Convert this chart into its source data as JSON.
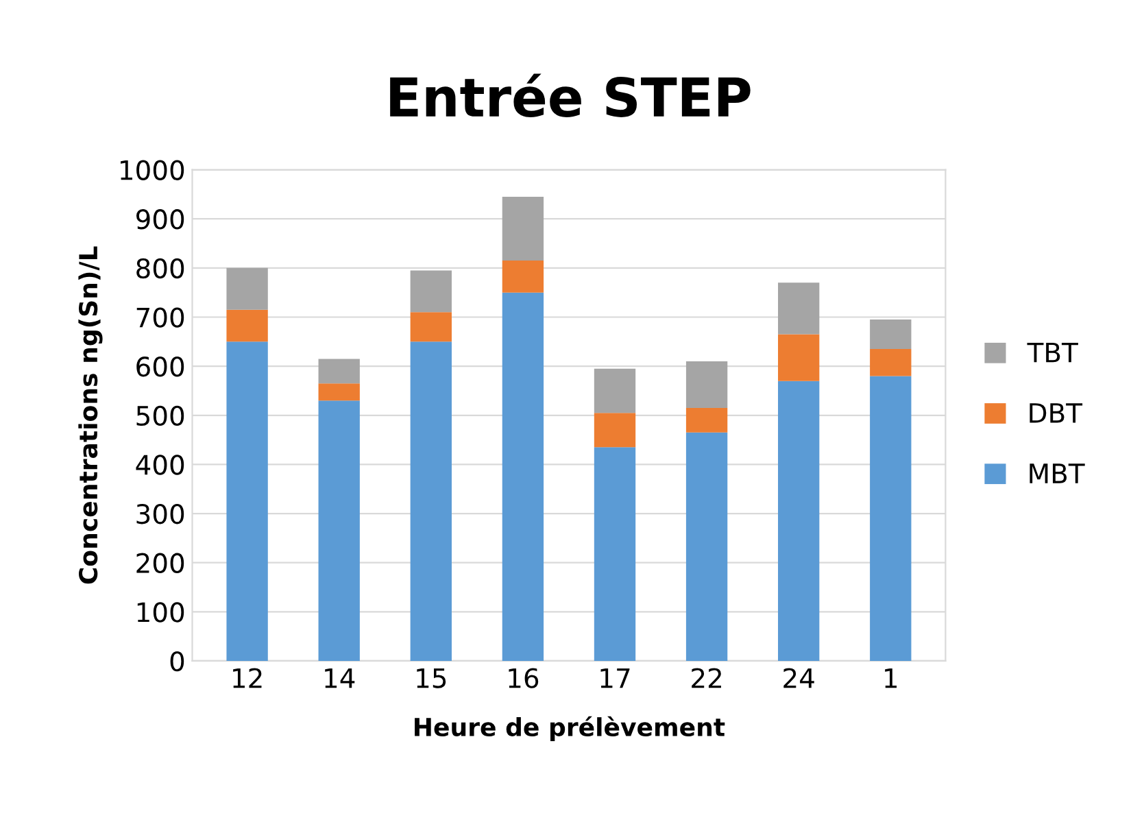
{
  "chart_data": {
    "type": "bar",
    "title": "Entrée STEP",
    "xlabel": "Heure de prélèvement",
    "ylabel": "Concentrations ng(Sn)/L",
    "categories": [
      "12",
      "14",
      "15",
      "16",
      "17",
      "22",
      "24",
      "1"
    ],
    "stacked": true,
    "series": [
      {
        "name": "MBT",
        "color": "#5b9bd5",
        "values": [
          650,
          530,
          650,
          750,
          435,
          465,
          570,
          580
        ]
      },
      {
        "name": "DBT",
        "color": "#ed7d31",
        "values": [
          65,
          35,
          60,
          65,
          70,
          50,
          95,
          55
        ]
      },
      {
        "name": "TBT",
        "color": "#a5a5a5",
        "values": [
          85,
          50,
          85,
          130,
          90,
          95,
          105,
          60
        ]
      }
    ],
    "ylim": [
      0,
      1000
    ],
    "yticks": [
      0,
      100,
      200,
      300,
      400,
      500,
      600,
      700,
      800,
      900,
      1000
    ],
    "grid": "y",
    "legend": "right"
  }
}
